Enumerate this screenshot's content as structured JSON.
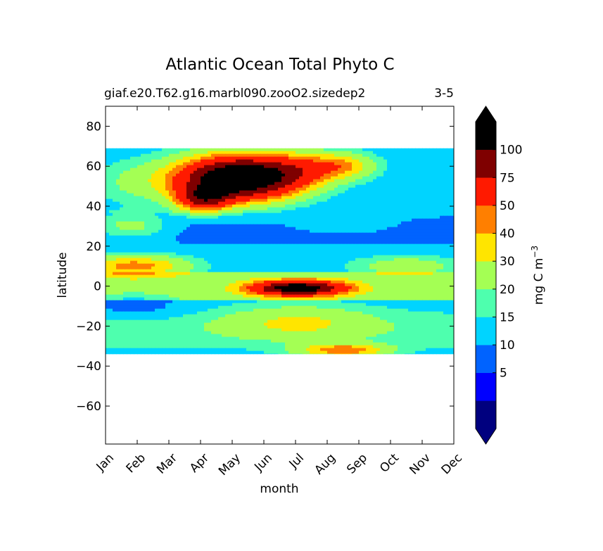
{
  "chart_data": {
    "type": "heatmap",
    "title": "Atlantic Ocean Total Phyto C",
    "subtitle_left": "giaf.e20.T62.g16.marbl090.zooO2.sizedep2",
    "subtitle_right": "3-5",
    "xlabel": "month",
    "ylabel": "latitude",
    "x_categories": [
      "Jan",
      "Feb",
      "Mar",
      "Apr",
      "May",
      "Jun",
      "Jul",
      "Aug",
      "Sep",
      "Oct",
      "Nov",
      "Dec"
    ],
    "xlim": [
      0,
      11
    ],
    "ylim": [
      -79,
      90
    ],
    "yticks": [
      80,
      60,
      40,
      20,
      0,
      -20,
      -40,
      -60
    ],
    "ytick_labels": [
      "80",
      "60",
      "40",
      "20",
      "0",
      "−20",
      "−40",
      "−60"
    ],
    "data_lat_range": [
      -34,
      69
    ],
    "colorbar": {
      "label": "mg C m",
      "label_sup": "−3",
      "levels": [
        0,
        1,
        5,
        10,
        15,
        20,
        30,
        40,
        50,
        75,
        100,
        125
      ],
      "tick_labels": [
        "5",
        "10",
        "15",
        "20",
        "30",
        "40",
        "50",
        "75",
        "100"
      ],
      "colors": [
        "#00007f",
        "#0000ff",
        "#0063ff",
        "#00d4ff",
        "#4effae",
        "#a4ff54",
        "#ffe500",
        "#ff7f00",
        "#ff1a00",
        "#7f0000",
        "#000000"
      ],
      "extend": "both"
    },
    "field_features": [
      {
        "kind": "bloom",
        "x": 4.2,
        "y": 54,
        "sx": 1.7,
        "sy": 10,
        "v": 130
      },
      {
        "kind": "bloom",
        "x": 3.1,
        "y": 44,
        "sx": 0.8,
        "sy": 6,
        "v": 65
      },
      {
        "kind": "bloom",
        "x": 6.0,
        "y": 58,
        "sx": 1.2,
        "sy": 8,
        "v": 30
      },
      {
        "kind": "bloom",
        "x": 7.4,
        "y": 60,
        "sx": 1.0,
        "sy": 6,
        "v": 28
      },
      {
        "kind": "bloom",
        "x": 1.2,
        "y": 52,
        "sx": 1.5,
        "sy": 10,
        "v": 10
      },
      {
        "kind": "bloom",
        "x": 0.8,
        "y": 30,
        "sx": 1.2,
        "sy": 6,
        "v": 14
      },
      {
        "kind": "bloom",
        "x": 0.9,
        "y": 10,
        "sx": 1.6,
        "sy": 5,
        "v": 33
      },
      {
        "kind": "bloom",
        "x": 6.1,
        "y": -1,
        "sx": 1.4,
        "sy": 3.5,
        "v": 100
      },
      {
        "kind": "bloom",
        "x": 6.1,
        "y": -18,
        "sx": 2.2,
        "sy": 8,
        "v": 16
      },
      {
        "kind": "bloom",
        "x": 9.5,
        "y": 10,
        "sx": 1.6,
        "sy": 5,
        "v": 14
      },
      {
        "kind": "bloom",
        "x": 7.5,
        "y": -32,
        "sx": 1.3,
        "sy": 3,
        "v": 35
      },
      {
        "kind": "trough",
        "x": 7.5,
        "y": 30,
        "sx": 3.5,
        "sy": 8,
        "v": 11
      },
      {
        "kind": "trough",
        "x": 0.9,
        "y": -10,
        "sx": 1.6,
        "sy": 6,
        "v": 7
      },
      {
        "kind": "trough",
        "x": 10.5,
        "y": 64,
        "sx": 0.7,
        "sy": 5,
        "v": 11
      }
    ]
  }
}
